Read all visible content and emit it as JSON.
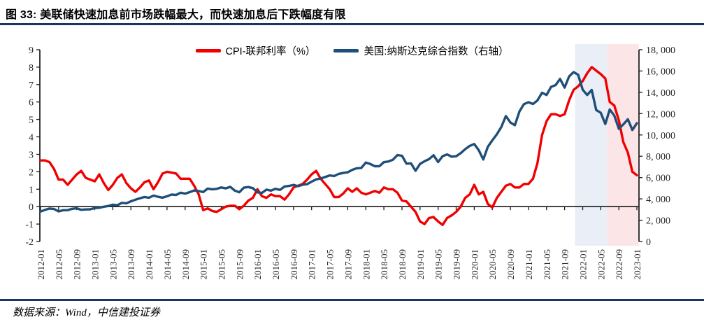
{
  "title": "图 33:  美联储快速加息前市场跌幅最大，而快速加息后下跌幅度有限",
  "footer": {
    "source": "数据来源：Wind，中信建投证券"
  },
  "colors": {
    "rule_navy": "#17375E",
    "cpi_line": "#F00000",
    "nasdaq_line": "#1F4E79",
    "band_blue": "#E9EEF7",
    "band_pink": "#FBE5E7",
    "axis": "#1a1a1a"
  },
  "legend": [
    {
      "label": "CPI-联邦利率（%）",
      "color": "#F00000"
    },
    {
      "label": "美国:纳斯达克综合指数（右轴）",
      "color": "#1F4E79"
    }
  ],
  "chart_data": {
    "type": "line",
    "title": "图 33:  美联储快速加息前市场跌幅最大，而快速加息后下跌幅度有限",
    "x_start": "2012-01",
    "x_end": "2023-01",
    "x_freq": "monthly",
    "x_tick_labels": [
      "2012-01",
      "2012-05",
      "2012-09",
      "2013-01",
      "2013-05",
      "2013-09",
      "2014-01",
      "2014-05",
      "2014-09",
      "2015-01",
      "2015-05",
      "2015-09",
      "2016-01",
      "2016-05",
      "2016-09",
      "2017-01",
      "2017-05",
      "2017-09",
      "2018-01",
      "2018-05",
      "2018-09",
      "2019-01",
      "2019-05",
      "2019-09",
      "2020-01",
      "2020-05",
      "2020-09",
      "2021-01",
      "2021-05",
      "2021-09",
      "2022-01",
      "2022-05",
      "2022-09",
      "2023-01"
    ],
    "x_tick_step_months": 4,
    "left_axis": {
      "min": -2,
      "max": 9,
      "tick_values": [
        9,
        8,
        7,
        6,
        5,
        4,
        3,
        2,
        1,
        0,
        -1,
        -2
      ]
    },
    "right_axis": {
      "min": 0,
      "max": 18000,
      "tick_step": 2000,
      "tick_labels": [
        "18, 000",
        "16, 000",
        "14, 000",
        "12, 000",
        "10, 000",
        "8, 000",
        "6, 000",
        "4, 000",
        "2, 000",
        "0"
      ]
    },
    "grid": false,
    "legend_position": "top-center",
    "bands": [
      {
        "from_month_index": 118.3,
        "to_month_index": 125.4,
        "color": "#E9EEF7"
      },
      {
        "from_month_index": 125.4,
        "to_month_index": 132.4,
        "color": "#FBE5E7"
      }
    ],
    "series": [
      {
        "name": "CPI-联邦利率（%）",
        "axis": "left",
        "color": "#F00000",
        "values": [
          2.65,
          2.65,
          2.55,
          2.15,
          1.55,
          1.55,
          1.25,
          1.55,
          1.85,
          2.05,
          1.65,
          1.55,
          1.45,
          1.85,
          1.35,
          0.95,
          1.25,
          1.65,
          1.85,
          1.35,
          1.05,
          0.85,
          1.1,
          1.4,
          1.5,
          1.0,
          1.4,
          1.9,
          2.0,
          1.95,
          1.9,
          1.6,
          1.6,
          1.6,
          1.2,
          0.7,
          -0.2,
          -0.1,
          -0.25,
          -0.3,
          -0.15,
          0.0,
          0.05,
          0.05,
          -0.15,
          0.05,
          0.35,
          0.5,
          1.0,
          0.6,
          0.5,
          0.7,
          0.6,
          0.6,
          0.4,
          0.7,
          1.1,
          1.2,
          1.3,
          1.55,
          1.85,
          2.05,
          1.6,
          1.3,
          1.0,
          0.55,
          0.55,
          0.75,
          1.05,
          0.85,
          1.05,
          0.8,
          0.7,
          0.8,
          0.9,
          0.8,
          1.1,
          1.0,
          1.0,
          0.8,
          0.35,
          0.3,
          0.0,
          -0.3,
          -0.85,
          -1.0,
          -0.65,
          -0.6,
          -0.85,
          -1.05,
          -0.65,
          -0.5,
          -0.3,
          0.0,
          0.5,
          0.7,
          1.25,
          0.7,
          0.85,
          0.15,
          -0.05,
          0.5,
          0.85,
          1.2,
          1.3,
          1.1,
          1.1,
          1.3,
          1.3,
          1.6,
          2.5,
          4.1,
          4.9,
          5.3,
          5.3,
          5.2,
          5.3,
          6.1,
          6.7,
          6.9,
          7.2,
          7.65,
          8.0,
          7.8,
          7.6,
          7.35,
          6.0,
          5.8,
          4.95,
          3.7,
          3.1,
          2.0,
          1.8
        ]
      },
      {
        "name": "美国:纳斯达克综合指数（右轴）",
        "axis": "right",
        "color": "#1F4E79",
        "values": [
          2814,
          2967,
          3092,
          3046,
          2827,
          2935,
          2940,
          3067,
          3116,
          2977,
          3010,
          3020,
          3142,
          3160,
          3268,
          3329,
          3456,
          3403,
          3626,
          3590,
          3771,
          3920,
          4060,
          4177,
          4104,
          4308,
          4199,
          4115,
          4243,
          4408,
          4370,
          4580,
          4493,
          4631,
          4792,
          4736,
          4635,
          4964,
          4901,
          4941,
          5070,
          4987,
          5128,
          4777,
          4620,
          5054,
          5109,
          5007,
          4614,
          4558,
          4870,
          4775,
          4948,
          4843,
          5162,
          5213,
          5312,
          5189,
          5324,
          5383,
          5615,
          5825,
          5912,
          6048,
          6199,
          6140,
          6348,
          6429,
          6496,
          6728,
          6874,
          6903,
          7411,
          7273,
          7063,
          7066,
          7442,
          7510,
          7672,
          8110,
          8046,
          7306,
          7331,
          6635,
          7282,
          7533,
          7729,
          8095,
          7453,
          8006,
          8175,
          7963,
          7999,
          8292,
          8665,
          8973,
          9151,
          8567,
          7700,
          8890,
          9490,
          10059,
          10745,
          11775,
          11168,
          10912,
          12199,
          12888,
          13071,
          12900,
          13247,
          13963,
          13749,
          14504,
          14673,
          15259,
          14449,
          15498,
          15900,
          15645,
          14240,
          13751,
          14221,
          12335,
          12081,
          11029,
          12391,
          11816,
          10576,
          10988,
          11468,
          10466,
          11100
        ]
      }
    ]
  }
}
